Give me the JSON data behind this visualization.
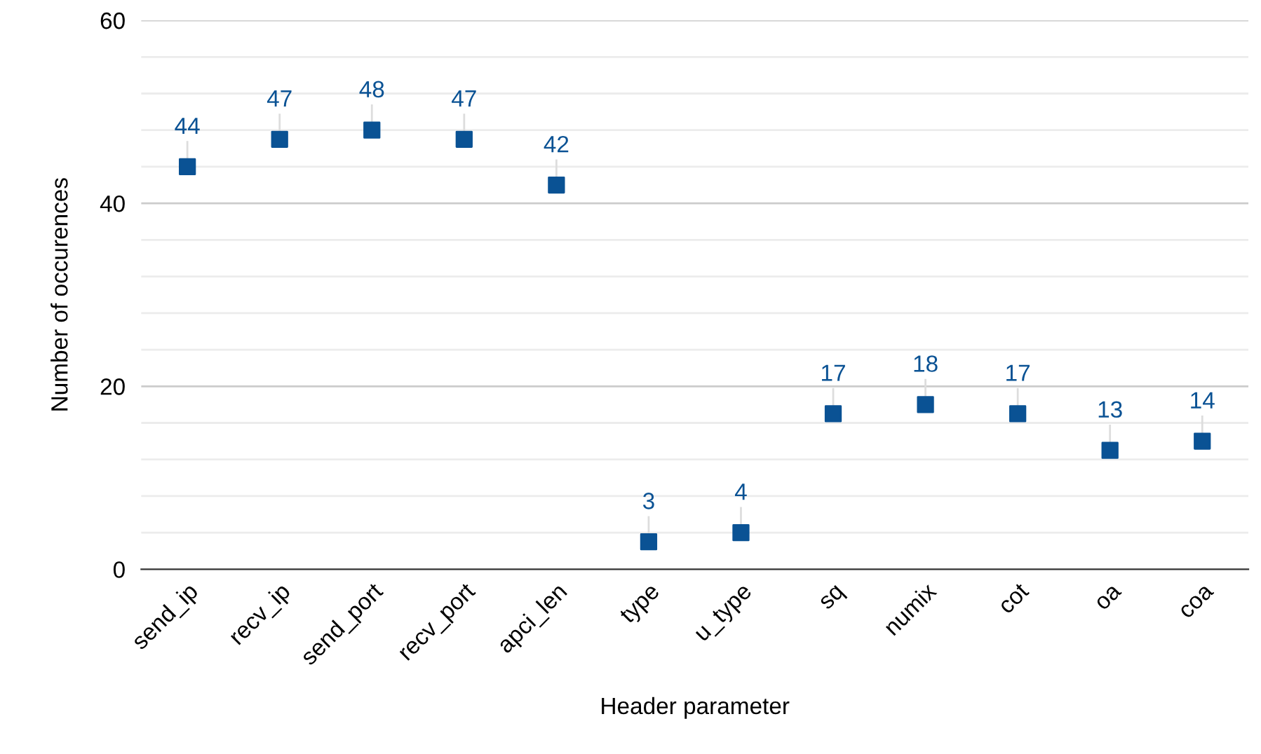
{
  "chart_data": {
    "type": "scatter",
    "xlabel": "Header parameter",
    "ylabel": "Number of occurences",
    "categories": [
      "send_ip",
      "recv_ip",
      "send_port",
      "recv_port",
      "apci_len",
      "type",
      "u_type",
      "sq",
      "numix",
      "cot",
      "oa",
      "coa"
    ],
    "series": [
      {
        "color": "#0a5294",
        "values": [
          44,
          47,
          48,
          47,
          42,
          3,
          4,
          17,
          18,
          17,
          13,
          14
        ]
      }
    ],
    "ylim": [
      0,
      60
    ],
    "yticks": [
      0,
      {
        "value": 4,
        "label": null
      },
      {
        "value": 8,
        "label": null
      },
      {
        "value": 12,
        "label": null
      },
      {
        "value": 16,
        "label": null
      },
      20,
      {
        "value": 24,
        "label": null
      },
      {
        "value": 28,
        "label": null
      },
      {
        "value": 32,
        "label": null
      },
      {
        "value": 36,
        "label": null
      },
      40,
      {
        "value": 44,
        "label": null
      },
      {
        "value": 48,
        "label": null
      },
      {
        "value": 52,
        "label": null
      },
      {
        "value": 56,
        "label": null
      },
      60
    ],
    "grid": "y",
    "marker": "square",
    "data_labels": true
  }
}
